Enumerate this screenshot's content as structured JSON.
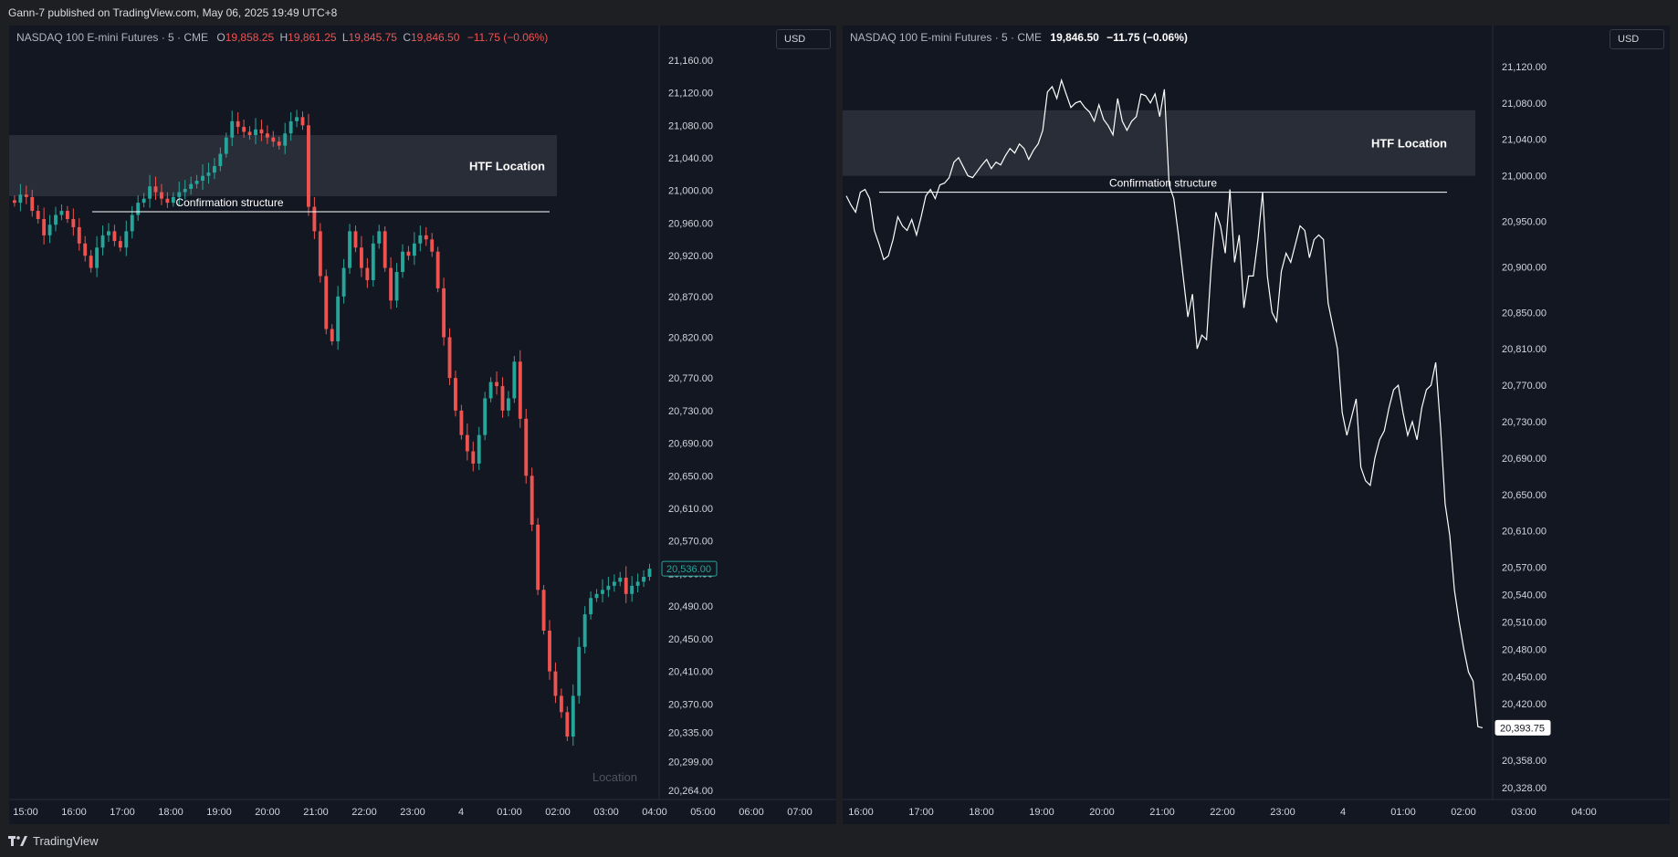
{
  "published_line": "Gann-7 published on TradingView.com, May 06, 2025 19:49 UTC+8",
  "brand": {
    "logo_icon": "tradingview-logo-icon",
    "name": "TradingView"
  },
  "colors": {
    "up": "#26a69a",
    "down": "#ef5350",
    "line": "#ffffff",
    "zone": "#2a2e39",
    "bg": "#131722"
  },
  "left_chart": {
    "symbol": "NASDAQ 100 E-mini Futures · 5 · CME",
    "ohlc": {
      "o_label": "O",
      "o": "19,858.25",
      "h_label": "H",
      "h": "19,861.25",
      "l_label": "L",
      "l": "19,845.75",
      "c_label": "C",
      "c": "19,846.50",
      "change": "−11.75 (−0.06%)"
    },
    "currency": "USD",
    "y_ticks": [
      "21,160.00",
      "21,120.00",
      "21,080.00",
      "21,040.00",
      "21,000.00",
      "20,960.00",
      "20,920.00",
      "20,870.00",
      "20,820.00",
      "20,770.00",
      "20,730.00",
      "20,690.00",
      "20,650.00",
      "20,610.00",
      "20,570.00",
      "20,530.00",
      "20,490.00",
      "20,450.00",
      "20,410.00",
      "20,370.00",
      "20,335.00",
      "20,299.00",
      "20,264.00"
    ],
    "x_ticks": [
      "15:00",
      "16:00",
      "17:00",
      "18:00",
      "19:00",
      "20:00",
      "21:00",
      "22:00",
      "23:00",
      "4",
      "01:00",
      "02:00",
      "03:00",
      "04:00",
      "05:00",
      "06:00",
      "07:00"
    ],
    "last_price": "20,536.00",
    "zone_label": "HTF Location",
    "structure_label": "Confirmation structure",
    "watermark": "Location"
  },
  "right_chart": {
    "symbol": "NASDAQ 100 E-mini Futures · 5 · CME",
    "last": "19,846.50",
    "change": "−11.75 (−0.06%)",
    "currency": "USD",
    "y_ticks": [
      "21,120.00",
      "21,080.00",
      "21,040.00",
      "21,000.00",
      "20,950.00",
      "20,900.00",
      "20,850.00",
      "20,810.00",
      "20,770.00",
      "20,730.00",
      "20,690.00",
      "20,650.00",
      "20,610.00",
      "20,570.00",
      "20,540.00",
      "20,510.00",
      "20,480.00",
      "20,450.00",
      "20,420.00",
      "20,393.75",
      "20,358.00",
      "20,328.00"
    ],
    "x_ticks": [
      "16:00",
      "17:00",
      "18:00",
      "19:00",
      "20:00",
      "21:00",
      "22:00",
      "23:00",
      "4",
      "01:00",
      "02:00",
      "03:00",
      "04:00"
    ],
    "last_price": "20,393.75",
    "zone_label": "HTF Location",
    "structure_label": "Confirmation structure"
  },
  "chart_data": [
    {
      "type": "candlestick",
      "title": "NASDAQ 100 E-mini Futures · 5 · CME",
      "ylim": [
        20264,
        21180
      ],
      "last_price": 20536,
      "htf_zone": [
        20993,
        21068
      ],
      "structure_level": 20974,
      "closes": [
        20985,
        20995,
        20992,
        20975,
        20965,
        20945,
        20958,
        20970,
        20975,
        20965,
        20955,
        20935,
        20920,
        20905,
        20930,
        20945,
        20950,
        20938,
        20930,
        20950,
        20970,
        20985,
        20990,
        21005,
        20998,
        20990,
        20985,
        20992,
        20998,
        21002,
        21008,
        21012,
        21018,
        21022,
        21030,
        21045,
        21065,
        21085,
        21078,
        21072,
        21068,
        21075,
        21070,
        21065,
        21060,
        21055,
        21070,
        21085,
        21090,
        21080,
        20980,
        20950,
        20895,
        20830,
        20815,
        20870,
        20905,
        20950,
        20930,
        20905,
        20890,
        20935,
        20950,
        20905,
        20865,
        20900,
        20925,
        20920,
        20935,
        20945,
        20940,
        20925,
        20880,
        20820,
        20770,
        20730,
        20700,
        20680,
        20665,
        20700,
        20745,
        20765,
        20760,
        20730,
        20745,
        20790,
        20720,
        20650,
        20590,
        20510,
        20460,
        20410,
        20380,
        20360,
        20330,
        20380,
        20440,
        20480,
        20500,
        20505,
        20510,
        20515,
        20520,
        20525,
        20505,
        20515,
        20520,
        20526,
        20536
      ]
    },
    {
      "type": "line",
      "title": "NASDAQ 100 E-mini Futures · 5 · CME",
      "ylim": [
        20325,
        21145
      ],
      "last_price": 20393.75,
      "htf_zone": [
        21000,
        21072
      ],
      "structure_level": 20982,
      "values": [
        20978,
        20968,
        20960,
        20982,
        20985,
        20975,
        20940,
        20925,
        20908,
        20912,
        20930,
        20955,
        20945,
        20940,
        20952,
        20935,
        20955,
        20978,
        20985,
        20975,
        20990,
        20992,
        20998,
        21015,
        21020,
        21010,
        21000,
        20998,
        21005,
        21012,
        21018,
        21008,
        21015,
        21012,
        21022,
        21030,
        21025,
        21035,
        21030,
        21018,
        21028,
        21035,
        21050,
        21092,
        21098,
        21085,
        21105,
        21090,
        21075,
        21080,
        21082,
        21075,
        21070,
        21060,
        21078,
        21062,
        21055,
        21045,
        21085,
        21060,
        21050,
        21060,
        21065,
        21090,
        21088,
        21080,
        21090,
        21065,
        21095,
        20990,
        20975,
        20935,
        20890,
        20845,
        20870,
        20810,
        20825,
        20820,
        20900,
        20960,
        20945,
        20915,
        20985,
        20905,
        20935,
        20855,
        20890,
        20890,
        20930,
        20982,
        20890,
        20850,
        20840,
        20895,
        20915,
        20905,
        20925,
        20945,
        20940,
        20910,
        20930,
        20935,
        20930,
        20860,
        20835,
        20810,
        20740,
        20715,
        20735,
        20755,
        20680,
        20665,
        20660,
        20690,
        20710,
        20720,
        20745,
        20765,
        20770,
        20740,
        20715,
        20730,
        20710,
        20745,
        20765,
        20770,
        20795,
        20725,
        20640,
        20605,
        20545,
        20510,
        20480,
        20455,
        20445,
        20395,
        20393.75
      ]
    }
  ]
}
